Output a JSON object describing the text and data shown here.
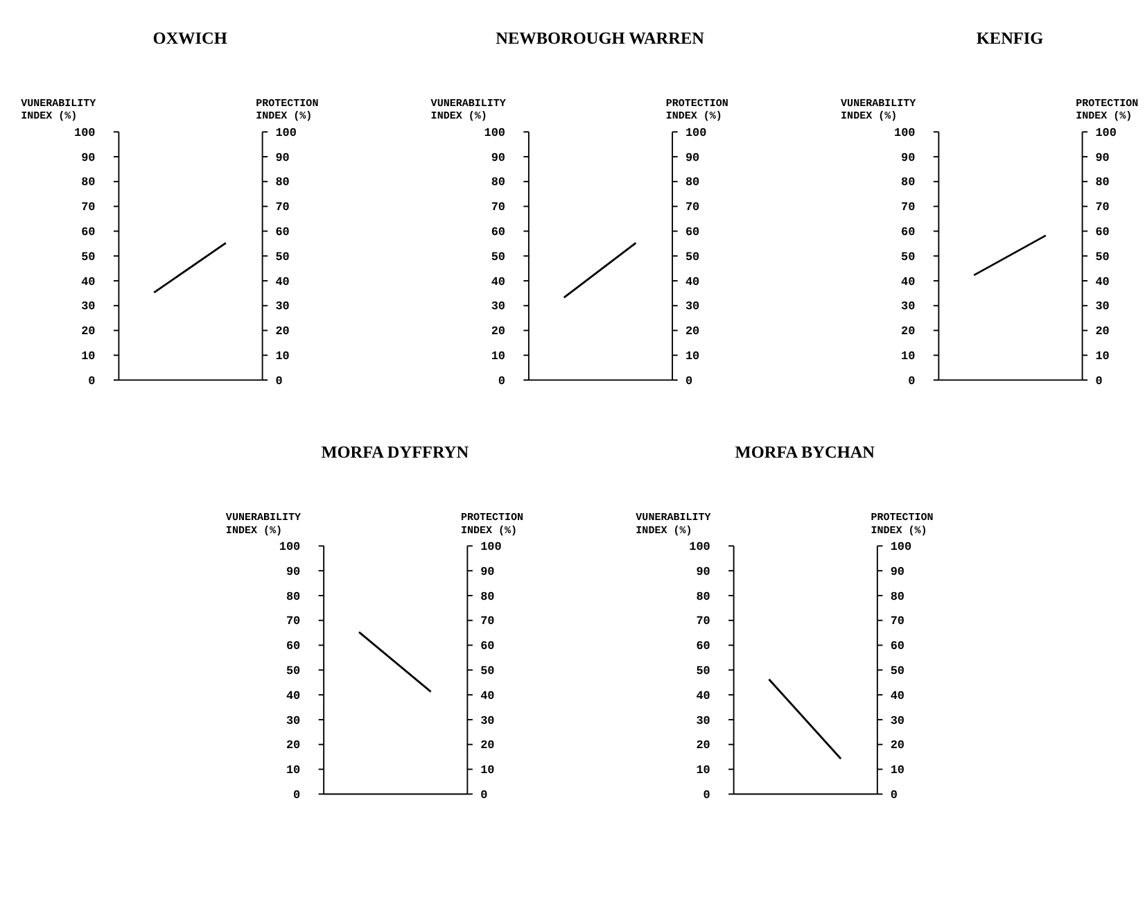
{
  "chart_data": [
    {
      "type": "line",
      "title": "OXWICH",
      "ylabel": "VUNERABILITY INDEX (%)",
      "y2label": "PROTECTION INDEX (%)",
      "categories": [
        null,
        null
      ],
      "ylim": [
        0,
        100
      ],
      "yticks": [
        0,
        10,
        20,
        30,
        40,
        50,
        60,
        70,
        80,
        90,
        100
      ],
      "y2lim": [
        0,
        100
      ],
      "y2ticks": [
        0,
        10,
        20,
        30,
        40,
        50,
        60,
        70,
        80,
        90,
        100
      ],
      "grid": false,
      "series": [
        {
          "color": "#000000",
          "values": [
            35,
            55
          ]
        }
      ]
    },
    {
      "type": "line",
      "title": "NEWBOROUGH WARREN",
      "ylabel": "VUNERABILITY INDEX (%)",
      "y2label": "PROTECTION INDEX (%)",
      "categories": [
        null,
        null
      ],
      "ylim": [
        0,
        100
      ],
      "yticks": [
        0,
        10,
        20,
        30,
        40,
        50,
        60,
        70,
        80,
        90,
        100
      ],
      "y2lim": [
        0,
        100
      ],
      "y2ticks": [
        0,
        10,
        20,
        30,
        40,
        50,
        60,
        70,
        80,
        90,
        100
      ],
      "grid": false,
      "series": [
        {
          "color": "#000000",
          "values": [
            33,
            55
          ]
        }
      ]
    },
    {
      "type": "line",
      "title": "KENFIG",
      "ylabel": "VUNERABILITY INDEX (%)",
      "y2label": "PROTECTION INDEX (%)",
      "categories": [
        null,
        null
      ],
      "ylim": [
        0,
        100
      ],
      "yticks": [
        0,
        10,
        20,
        30,
        40,
        50,
        60,
        70,
        80,
        90,
        100
      ],
      "y2lim": [
        0,
        100
      ],
      "y2ticks": [
        0,
        10,
        20,
        30,
        40,
        50,
        60,
        70,
        80,
        90,
        100
      ],
      "grid": false,
      "series": [
        {
          "color": "#000000",
          "values": [
            42,
            58
          ]
        }
      ]
    },
    {
      "type": "line",
      "title": "MORFA DYFFRYN",
      "ylabel": "VUNERABILITY INDEX (%)",
      "y2label": "PROTECTION INDEX (%)",
      "categories": [
        null,
        null
      ],
      "ylim": [
        0,
        100
      ],
      "yticks": [
        0,
        10,
        20,
        30,
        40,
        50,
        60,
        70,
        80,
        90,
        100
      ],
      "y2lim": [
        0,
        100
      ],
      "y2ticks": [
        0,
        10,
        20,
        30,
        40,
        50,
        60,
        70,
        80,
        90,
        100
      ],
      "grid": false,
      "series": [
        {
          "color": "#000000",
          "values": [
            65,
            41
          ]
        }
      ]
    },
    {
      "type": "line",
      "title": "MORFA BYCHAN",
      "ylabel": "VUNERABILITY INDEX (%)",
      "y2label": "PROTECTION INDEX (%)",
      "categories": [
        null,
        null
      ],
      "ylim": [
        0,
        100
      ],
      "yticks": [
        0,
        10,
        20,
        30,
        40,
        50,
        60,
        70,
        80,
        90,
        100
      ],
      "y2lim": [
        0,
        100
      ],
      "y2ticks": [
        0,
        10,
        20,
        30,
        40,
        50,
        60,
        70,
        80,
        90,
        100
      ],
      "grid": false,
      "series": [
        {
          "color": "#000000",
          "values": [
            46,
            14
          ]
        }
      ]
    }
  ]
}
